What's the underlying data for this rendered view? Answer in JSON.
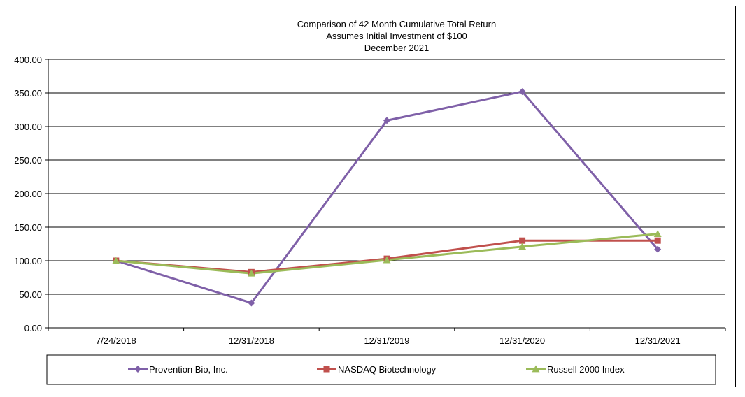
{
  "chart_data": {
    "type": "line",
    "title": [
      "Comparison of 42 Month Cumulative Total Return",
      "Assumes Initial Investment of $100",
      "December 2021"
    ],
    "categories": [
      "7/24/2018",
      "12/31/2018",
      "12/31/2019",
      "12/31/2020",
      "12/31/2021"
    ],
    "y_ticks": [
      "0.00",
      "50.00",
      "100.00",
      "150.00",
      "200.00",
      "250.00",
      "300.00",
      "350.00",
      "400.00"
    ],
    "ylim": [
      0,
      400
    ],
    "xlabel": "",
    "ylabel": "",
    "grid": true,
    "legend_position": "bottom",
    "series": [
      {
        "name": "Provention Bio, Inc.",
        "values": [
          100.0,
          37.0,
          309.0,
          352.0,
          117.0
        ],
        "color": "#7f60a8",
        "marker": "diamond"
      },
      {
        "name": "NASDAQ Biotechnology",
        "values": [
          100.0,
          83.0,
          103.0,
          130.0,
          130.0
        ],
        "color": "#c0504d",
        "marker": "square"
      },
      {
        "name": "Russell 2000 Index",
        "values": [
          100.0,
          81.0,
          101.0,
          121.0,
          140.0
        ],
        "color": "#9bbb59",
        "marker": "triangle"
      }
    ]
  }
}
